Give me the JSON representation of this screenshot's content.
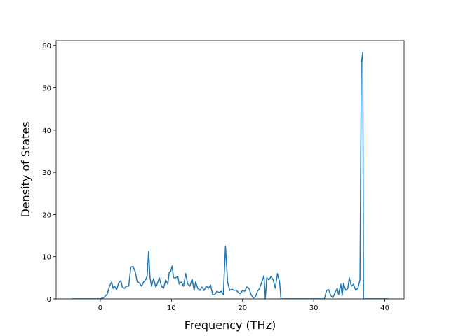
{
  "chart_data": {
    "type": "line",
    "x_label": "Frequency (THz)",
    "y_label": "Density of States",
    "color": "#1f77b4",
    "x": [
      -4,
      -0.5,
      0,
      0.5,
      1,
      1.3,
      1.6,
      1.8,
      2,
      2.3,
      2.6,
      2.9,
      3.1,
      3.4,
      3.7,
      4,
      4.3,
      4.6,
      4.9,
      5.2,
      5.5,
      5.8,
      6.1,
      6.4,
      6.6,
      6.8,
      7,
      7.2,
      7.5,
      7.8,
      8,
      8.3,
      8.6,
      8.9,
      9.2,
      9.5,
      9.7,
      9.9,
      10.1,
      10.3,
      10.6,
      10.9,
      11.1,
      11.4,
      11.7,
      12,
      12.3,
      12.6,
      12.9,
      13.2,
      13.4,
      13.7,
      14,
      14.3,
      14.6,
      14.9,
      15.2,
      15.5,
      15.8,
      16.1,
      16.4,
      16.7,
      17,
      17.3,
      17.6,
      17.9,
      18.2,
      18.5,
      18.8,
      19.1,
      19.4,
      19.7,
      20,
      20.3,
      20.6,
      20.9,
      21.2,
      21.5,
      21.8,
      22.1,
      22.4,
      22.7,
      23,
      23.2,
      23.4,
      23.7,
      24,
      24.3,
      24.6,
      24.9,
      25.2,
      25.4,
      26,
      31.5,
      31.8,
      32.1,
      32.4,
      32.7,
      33,
      33.3,
      33.5,
      33.8,
      34,
      34.2,
      34.5,
      34.8,
      35,
      35.3,
      35.6,
      35.9,
      36.2,
      36.5,
      36.7,
      36.9,
      37,
      40.5
    ],
    "values": [
      0,
      0,
      0,
      0.3,
      1.2,
      3,
      4,
      2.5,
      3,
      2.2,
      3.8,
      4.3,
      2.8,
      2.5,
      3,
      3,
      7.5,
      7.7,
      6.5,
      4,
      3.8,
      3,
      4,
      4.6,
      5.5,
      11.3,
      5,
      3,
      4.8,
      2.8,
      3.5,
      5,
      3,
      2.5,
      4.5,
      3.5,
      6.3,
      6.5,
      7.8,
      5,
      5,
      5.3,
      3.5,
      4,
      3,
      6,
      3.5,
      3,
      4.7,
      2,
      4,
      2.5,
      2,
      2.8,
      2,
      3,
      2.5,
      3.3,
      1,
      1,
      1.8,
      1.5,
      1.8,
      1,
      12.5,
      4,
      2,
      2.3,
      2,
      2.1,
      1.5,
      1.2,
      2,
      1.8,
      2.8,
      2.5,
      1,
      0.2,
      0.5,
      1.8,
      2.5,
      4,
      5.5,
      0,
      5,
      4.5,
      5.3,
      4.5,
      2.5,
      6,
      4,
      0,
      0,
      0,
      2,
      2.2,
      0.8,
      0.3,
      1.5,
      2.5,
      1,
      3.5,
      0.8,
      3.7,
      2,
      2.5,
      5,
      3,
      3.5,
      2,
      2.5,
      4.5,
      56,
      58.4,
      0,
      0
    ],
    "xlim": [
      -6.2,
      42.7
    ],
    "ylim": [
      0,
      61.2
    ],
    "xticks": [
      0,
      10,
      20,
      30,
      40
    ],
    "yticks": [
      0,
      10,
      20,
      30,
      40,
      50,
      60
    ]
  }
}
